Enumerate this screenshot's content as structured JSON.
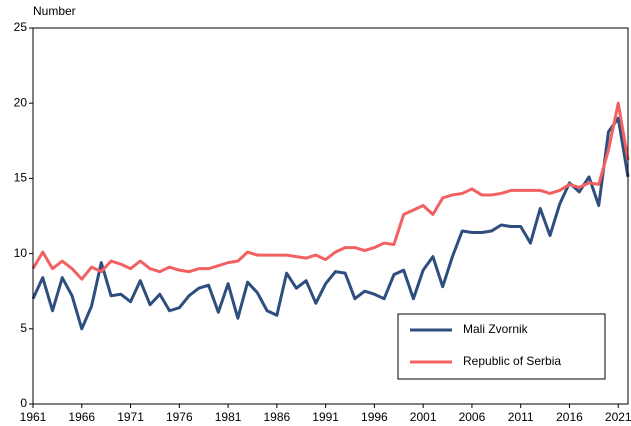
{
  "chart_data": {
    "type": "line",
    "y_label": "Number",
    "x": [
      1961,
      1962,
      1963,
      1964,
      1965,
      1966,
      1967,
      1968,
      1969,
      1970,
      1971,
      1972,
      1973,
      1974,
      1975,
      1976,
      1977,
      1978,
      1979,
      1980,
      1981,
      1982,
      1983,
      1984,
      1985,
      1986,
      1987,
      1988,
      1989,
      1990,
      1991,
      1992,
      1993,
      1994,
      1995,
      1996,
      1997,
      1998,
      1999,
      2000,
      2001,
      2002,
      2003,
      2004,
      2005,
      2006,
      2007,
      2008,
      2009,
      2010,
      2011,
      2012,
      2013,
      2014,
      2015,
      2016,
      2017,
      2018,
      2019,
      2020,
      2021,
      2022
    ],
    "series": [
      {
        "name": "Mali Zvornik",
        "color": "#2e4e7e",
        "values": [
          7.0,
          8.4,
          6.2,
          8.4,
          7.2,
          5.0,
          6.5,
          9.4,
          7.2,
          7.3,
          6.8,
          8.2,
          6.6,
          7.3,
          6.2,
          6.4,
          7.2,
          7.7,
          7.9,
          6.1,
          8.0,
          5.7,
          8.1,
          7.4,
          6.2,
          5.9,
          8.7,
          7.7,
          8.2,
          6.7,
          8.0,
          8.8,
          8.7,
          7.0,
          7.5,
          7.3,
          7.0,
          8.6,
          8.9,
          7.0,
          8.9,
          9.8,
          7.8,
          9.8,
          11.5,
          11.4,
          11.4,
          11.5,
          11.9,
          11.8,
          11.8,
          10.7,
          13.0,
          11.2,
          13.3,
          14.7,
          14.1,
          15.1,
          13.2,
          18.1,
          19.0,
          15.1
        ]
      },
      {
        "name": "Republic of Serbia",
        "color": "#f26161",
        "values": [
          9.0,
          10.1,
          9.0,
          9.5,
          9.0,
          8.3,
          9.1,
          8.8,
          9.5,
          9.3,
          9.0,
          9.5,
          9.0,
          8.8,
          9.1,
          8.9,
          8.8,
          9.0,
          9.0,
          9.2,
          9.4,
          9.5,
          10.1,
          9.9,
          9.9,
          9.9,
          9.9,
          9.8,
          9.7,
          9.9,
          9.6,
          10.1,
          10.4,
          10.4,
          10.2,
          10.4,
          10.7,
          10.6,
          12.6,
          12.9,
          13.2,
          12.6,
          13.7,
          13.9,
          14.0,
          14.3,
          13.9,
          13.9,
          14.0,
          14.2,
          14.2,
          14.2,
          14.2,
          14.0,
          14.2,
          14.6,
          14.4,
          14.7,
          14.6,
          16.9,
          20.0,
          16.2
        ]
      }
    ],
    "xlim": [
      1961,
      2022
    ],
    "xticks": [
      1961,
      1966,
      1971,
      1976,
      1981,
      1986,
      1991,
      1996,
      2001,
      2006,
      2011,
      2016,
      2021
    ],
    "ylim": [
      0,
      25
    ],
    "yticks": [
      0,
      5,
      10,
      15,
      20,
      25
    ],
    "grid": false,
    "legend": "lower right"
  }
}
